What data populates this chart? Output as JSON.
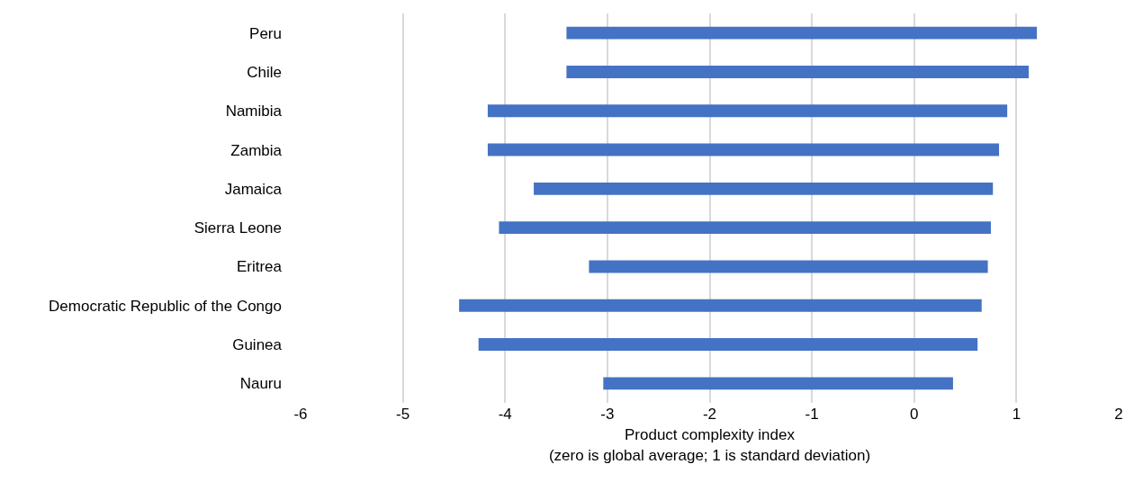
{
  "chart_data": {
    "type": "bar",
    "orientation": "horizontal",
    "xlabel": "Product complexity index\n(zero is global average; 1 is standard deviation)",
    "categories": [
      "Peru",
      "Chile",
      "Namibia",
      "Zambia",
      "Jamaica",
      "Sierra Leone",
      "Eritrea",
      "Democratic Republic of the Congo",
      "Guinea",
      "Nauru"
    ],
    "base": [
      -3.4,
      -3.4,
      -4.17,
      -4.17,
      -3.72,
      -4.06,
      -3.18,
      -4.45,
      -4.26,
      -3.04
    ],
    "values": [
      4.6,
      4.52,
      5.08,
      5.0,
      4.49,
      4.81,
      3.9,
      5.11,
      4.88,
      3.42
    ],
    "color": "#4472c4",
    "xlim": [
      -6,
      2
    ],
    "xticks": [
      -6,
      -5,
      -4,
      -3,
      -2,
      -1,
      0,
      1,
      2
    ],
    "grid": "x"
  }
}
